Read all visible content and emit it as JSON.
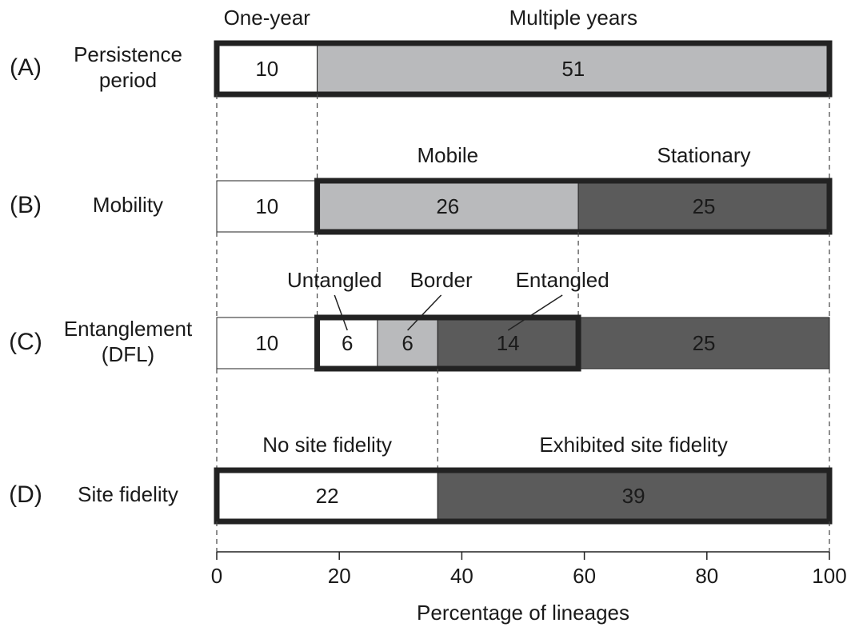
{
  "chart_data": {
    "type": "bar",
    "stacked": "percent",
    "xlabel": "Percentage of lineages",
    "xlim": [
      0,
      100
    ],
    "xticks": [
      0,
      20,
      40,
      60,
      80,
      100
    ],
    "rows": [
      {
        "letter": "(A)",
        "name": [
          "Persistence",
          "period"
        ],
        "segments": [
          {
            "value": 10,
            "color": "#ffffff",
            "label": "One-year",
            "outlined": true
          },
          {
            "value": 51,
            "color": "#b9babc",
            "label": "Multiple years",
            "outlined": true
          }
        ]
      },
      {
        "letter": "(B)",
        "name": [
          "Mobility"
        ],
        "segments": [
          {
            "value": 10,
            "color": "#ffffff",
            "outlined": false
          },
          {
            "value": 26,
            "color": "#b9babc",
            "label": "Mobile",
            "outlined": true
          },
          {
            "value": 25,
            "color": "#5b5b5b",
            "label": "Stationary",
            "outlined": true
          }
        ]
      },
      {
        "letter": "(C)",
        "name": [
          "Entanglement",
          "(DFL)"
        ],
        "leaders": true,
        "segments": [
          {
            "value": 10,
            "color": "#ffffff",
            "outlined": false
          },
          {
            "value": 6,
            "color": "#ffffff",
            "label": "Untangled",
            "outlined": true
          },
          {
            "value": 6,
            "color": "#b9babc",
            "label": "Border",
            "outlined": true
          },
          {
            "value": 14,
            "color": "#5b5b5b",
            "label": "Entangled",
            "outlined": true
          },
          {
            "value": 25,
            "color": "#5b5b5b",
            "outlined": false
          }
        ]
      },
      {
        "letter": "(D)",
        "name": [
          "Site fidelity"
        ],
        "segments": [
          {
            "value": 22,
            "color": "#ffffff",
            "label": "No site fidelity",
            "outlined": true
          },
          {
            "value": 39,
            "color": "#5b5b5b",
            "label": "Exhibited site fidelity",
            "outlined": true
          }
        ]
      }
    ]
  }
}
